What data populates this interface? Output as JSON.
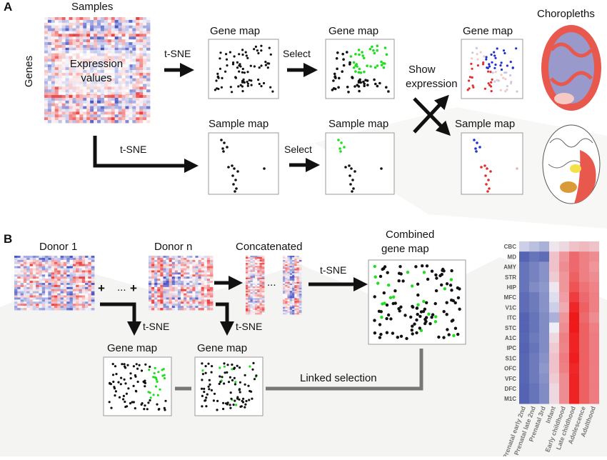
{
  "panels": {
    "a": "A",
    "b": "B"
  },
  "a": {
    "samples_label": "Samples",
    "genes_label": "Genes",
    "expression_label_1": "Expression",
    "expression_label_2": "values",
    "tsne_top": "t-SNE",
    "tsne_bottom": "t-SNE",
    "gene_map_1": "Gene map",
    "gene_map_2": "Gene map",
    "gene_map_3": "Gene map",
    "sample_map_1": "Sample map",
    "sample_map_2": "Sample map",
    "sample_map_3": "Sample map",
    "select_top": "Select",
    "select_bottom": "Select",
    "show_expression_1": "Show",
    "show_expression_2": "expression",
    "choropleths": "Choropleths"
  },
  "b": {
    "donor_1": "Donor 1",
    "donor_n": "Donor n",
    "plus_1": "+",
    "ellipsis_1": "...",
    "plus_2": "+",
    "concatenated": "Concatenated",
    "ellipsis_2": "...",
    "tsne_right": "t-SNE",
    "tsne_down_1": "t-SNE",
    "tsne_down_2": "t-SNE",
    "combined_1": "Combined",
    "combined_2": "gene map",
    "gene_map_left": "Gene map",
    "gene_map_right": "Gene map",
    "linked_selection": "Linked selection"
  },
  "colors": {
    "black_dot": "#111111",
    "green_dot": "#22dd22",
    "blue_dot": "#2233cc",
    "red_dot": "#e03030",
    "heat_low": "#4455aa",
    "heat_high": "#ee1111",
    "brain_red": "#e8584d",
    "brain_purple": "#9999cc",
    "brain_yellow": "#f4e14a",
    "brain_orange": "#d99a3a"
  },
  "heatmap": {
    "rows": [
      "CBC",
      "MD",
      "AMY",
      "STR",
      "HIP",
      "MFC",
      "V1C",
      "ITC",
      "STC",
      "A1C",
      "IPC",
      "S1C",
      "OFC",
      "VFC",
      "DFC",
      "M1C"
    ],
    "cols": [
      "Prenatal early 2nd",
      "Prenatal late 2nd",
      "Prenatal 3rd",
      "Infant",
      "Early childhood",
      "Late childhood",
      "Adolescence",
      "Adulthood"
    ],
    "values": [
      [
        0.4,
        0.35,
        0.3,
        0.52,
        0.55,
        0.6,
        0.62,
        0.6
      ],
      [
        0.05,
        0.1,
        0.08,
        0.6,
        0.7,
        0.8,
        0.75,
        0.72
      ],
      [
        0.1,
        0.15,
        0.2,
        0.6,
        0.72,
        0.8,
        0.75,
        0.7
      ],
      [
        0.1,
        0.15,
        0.2,
        0.58,
        0.7,
        0.82,
        0.75,
        0.72
      ],
      [
        0.1,
        0.18,
        0.22,
        0.52,
        0.7,
        0.85,
        0.78,
        0.74
      ],
      [
        0.08,
        0.12,
        0.2,
        0.45,
        0.68,
        0.9,
        0.8,
        0.75
      ],
      [
        0.08,
        0.12,
        0.2,
        0.4,
        0.65,
        0.95,
        0.82,
        0.75
      ],
      [
        0.05,
        0.1,
        0.18,
        0.3,
        0.7,
        0.98,
        0.8,
        0.72
      ],
      [
        0.05,
        0.1,
        0.18,
        0.5,
        0.72,
        0.98,
        0.82,
        0.75
      ],
      [
        0.06,
        0.12,
        0.18,
        0.55,
        0.75,
        0.96,
        0.82,
        0.76
      ],
      [
        0.05,
        0.1,
        0.18,
        0.58,
        0.74,
        0.96,
        0.82,
        0.76
      ],
      [
        0.06,
        0.12,
        0.2,
        0.6,
        0.76,
        0.97,
        0.82,
        0.76
      ],
      [
        0.06,
        0.12,
        0.22,
        0.6,
        0.75,
        0.95,
        0.82,
        0.76
      ],
      [
        0.06,
        0.12,
        0.2,
        0.58,
        0.72,
        0.96,
        0.82,
        0.76
      ],
      [
        0.05,
        0.1,
        0.18,
        0.55,
        0.72,
        0.96,
        0.82,
        0.76
      ],
      [
        0.05,
        0.1,
        0.18,
        0.55,
        0.72,
        0.96,
        0.82,
        0.76
      ]
    ]
  }
}
